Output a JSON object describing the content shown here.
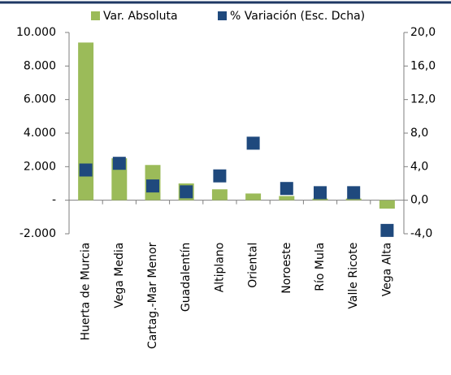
{
  "chart_data": {
    "type": "bar",
    "categories": [
      "Huerta de Murcia",
      "Vega Media",
      "Cartag.-Mar Menor",
      "Guadalentín",
      "Altiplano",
      "Oriental",
      "Noroeste",
      "Río Mula",
      "Valle Ricote",
      "Vega Alta"
    ],
    "series": [
      {
        "name": "Var. Absoluta",
        "type": "bar",
        "color": "#9bbb59",
        "values": [
          9400,
          2500,
          2100,
          1000,
          650,
          400,
          250,
          100,
          100,
          -500
        ]
      },
      {
        "name": "% Variación (Esc. Dcha)",
        "type": "scatter",
        "axis": "y2",
        "color": "#1f497d",
        "values": [
          3.6,
          4.4,
          1.7,
          1.0,
          2.9,
          6.8,
          1.4,
          0.9,
          0.9,
          -3.6
        ]
      }
    ],
    "ylim": [
      -2000,
      10000
    ],
    "yticks": [
      {
        "value": -2000,
        "label": "-2.000"
      },
      {
        "value": 0,
        "label": "-"
      },
      {
        "value": 2000,
        "label": "2.000"
      },
      {
        "value": 4000,
        "label": "4.000"
      },
      {
        "value": 6000,
        "label": "6.000"
      },
      {
        "value": 8000,
        "label": "8.000"
      },
      {
        "value": 10000,
        "label": "10.000"
      }
    ],
    "y2lim": [
      -4,
      20
    ],
    "y2ticks": [
      {
        "value": -4,
        "label": "-4,0"
      },
      {
        "value": 0,
        "label": "0,0"
      },
      {
        "value": 4,
        "label": "4,0"
      },
      {
        "value": 8,
        "label": "8,0"
      },
      {
        "value": 12,
        "label": "12,0"
      },
      {
        "value": 16,
        "label": "16,0"
      },
      {
        "value": 20,
        "label": "20,0"
      }
    ],
    "legend": "top"
  }
}
